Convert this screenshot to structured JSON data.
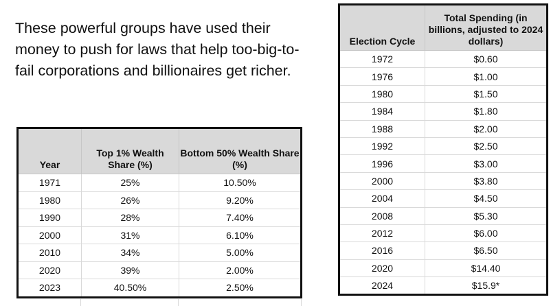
{
  "intro_text": "These powerful groups have used their money to push for laws that help too-big-to-fail corporations and billionaires get richer.",
  "wealth_table": {
    "headers": [
      "Year",
      "Top 1% Wealth Share (%)",
      "Bottom 50% Wealth Share (%)"
    ],
    "rows": [
      [
        "1971",
        "25%",
        "10.50%"
      ],
      [
        "1980",
        "26%",
        "9.20%"
      ],
      [
        "1990",
        "28%",
        "7.40%"
      ],
      [
        "2000",
        "31%",
        "6.10%"
      ],
      [
        "2010",
        "34%",
        "5.00%"
      ],
      [
        "2020",
        "39%",
        "2.00%"
      ],
      [
        "2023",
        "40.50%",
        "2.50%"
      ]
    ]
  },
  "spending_table": {
    "headers": [
      "Election Cycle",
      "Total Spending (in billions, adjusted to 2024 dollars)"
    ],
    "rows": [
      [
        "1972",
        "$0.60"
      ],
      [
        "1976",
        "$1.00"
      ],
      [
        "1980",
        "$1.50"
      ],
      [
        "1984",
        "$1.80"
      ],
      [
        "1988",
        "$2.00"
      ],
      [
        "1992",
        "$2.50"
      ],
      [
        "1996",
        "$3.00"
      ],
      [
        "2000",
        "$3.80"
      ],
      [
        "2004",
        "$4.50"
      ],
      [
        "2008",
        "$5.30"
      ],
      [
        "2012",
        "$6.00"
      ],
      [
        "2016",
        "$6.50"
      ],
      [
        "2020",
        "$14.40"
      ],
      [
        "2024",
        "$15.9*"
      ]
    ]
  }
}
